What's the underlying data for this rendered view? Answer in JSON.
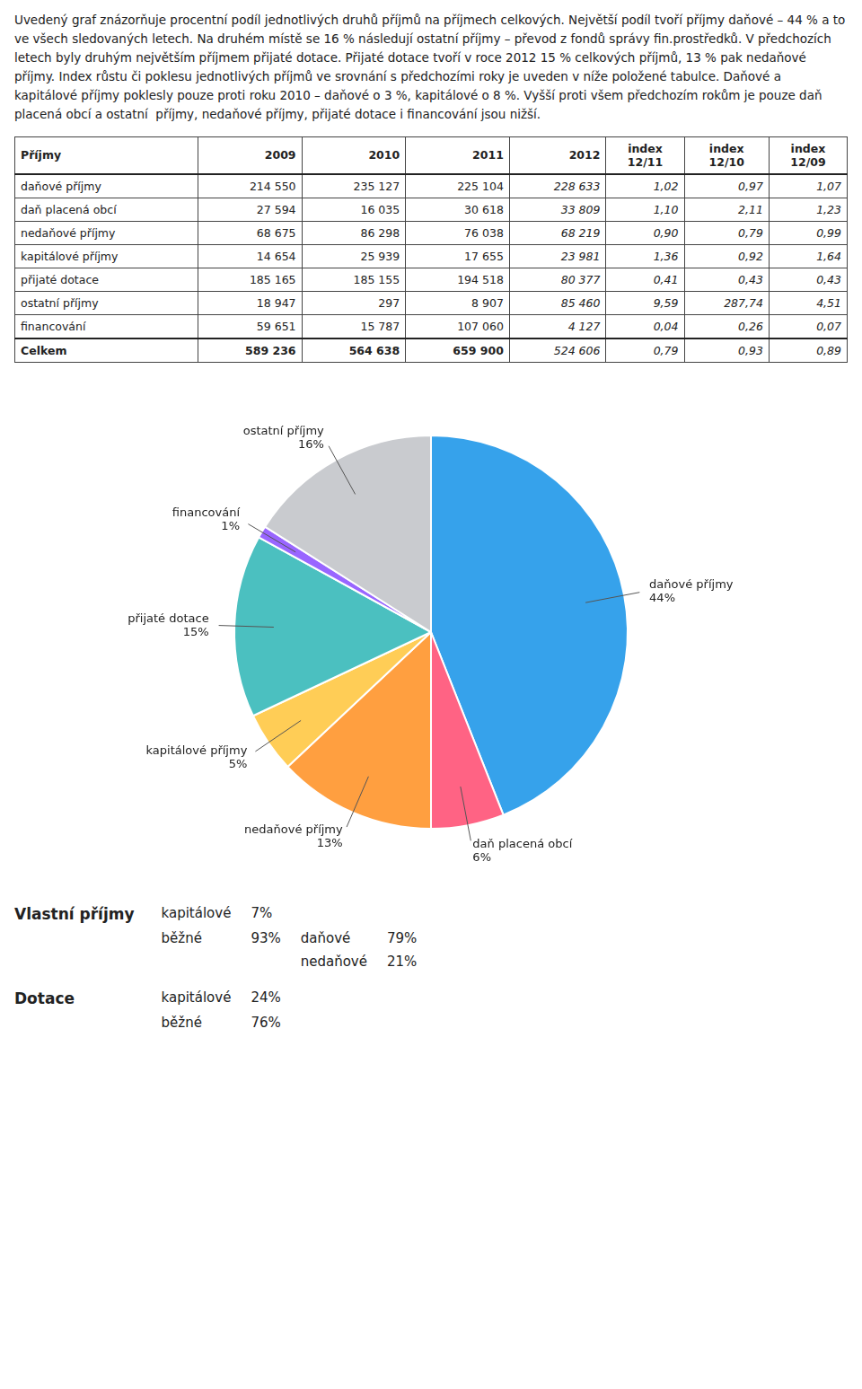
{
  "chart_data": {
    "type": "pie",
    "categories": [
      "daňové příjmy",
      "daň placená obcí",
      "nedaňové příjmy",
      "kapitálové příjmy",
      "přijaté dotace",
      "financování",
      "ostatní příjmy"
    ],
    "values": [
      44,
      6,
      13,
      5,
      15,
      1,
      16
    ],
    "value_labels": [
      "44%",
      "6%",
      "13%",
      "5%",
      "15%",
      "1%",
      "16%"
    ],
    "data_labels": true,
    "annotations": {
      "paragraph": "Uvedený graf znázorňuje procentní podíl jednotlivých druhů příjmů na příjmech celkových. Největší podíl tvoří příjmy daňové – 44 % a to ve všech sledovaných letech. Na druhém místě se 16 % následují ostatní příjmy – převod z fondů správy fin.prostředků. V předchozích letech byly druhým největším příjmem přijaté dotace. Přijaté dotace tvoří v roce 2012 15 % celkových příjmů, 13 % pak nedaňové příjmy. Index růstu či poklesu jednotlivých příjmů ve srovnání s předchozími roky je uveden v níže položené tabulce. Daňové a kapitálové příjmy poklesly pouze proti roku 2010 – daňové o 3 %, kapitálové o 8 %. Vyšší proti všem předchozím rokům je pouze daň placená obcí a ostatní  příjmy, nedaňové příjmy, přijaté dotace i financování jsou nižší.",
      "table": {
        "columns": [
          "Příjmy",
          "2009",
          "2010",
          "2011",
          "2012",
          "index\n12/11",
          "index\n12/10",
          "index\n12/09"
        ],
        "rows": [
          [
            "daňové příjmy",
            "214 550",
            "235 127",
            "225 104",
            "228 633",
            "1,02",
            "0,97",
            "1,07"
          ],
          [
            "daň placená obcí",
            "27 594",
            "16 035",
            "30 618",
            "33 809",
            "1,10",
            "2,11",
            "1,23"
          ],
          [
            "nedaňové příjmy",
            "68 675",
            "86 298",
            "76 038",
            "68 219",
            "0,90",
            "0,79",
            "0,99"
          ],
          [
            "kapitálové příjmy",
            "14 654",
            "25 939",
            "17 655",
            "23 981",
            "1,36",
            "0,92",
            "1,64"
          ],
          [
            "přijaté dotace",
            "185 165",
            "185 155",
            "194 518",
            "80 377",
            "0,41",
            "0,43",
            "0,43"
          ],
          [
            "ostatní příjmy",
            "18 947",
            "297",
            "8 907",
            "85 460",
            "9,59",
            "287,74",
            "4,51"
          ],
          [
            "financování",
            "59 651",
            "15 787",
            "107 060",
            "4 127",
            "0,04",
            "0,26",
            "0,07"
          ],
          [
            "Celkem",
            "589 236",
            "564 638",
            "659 900",
            "524 606",
            "0,79",
            "0,93",
            "0,89"
          ]
        ]
      },
      "sections": [
        {
          "label": "Vlastní příjmy",
          "items": [
            {
              "label": "kapitálové",
              "value": "7%"
            },
            {
              "label": "běžné",
              "value": "93%",
              "items": [
                {
                  "label": "daňové",
                  "value": "79%"
                },
                {
                  "label": "nedaňové",
                  "value": "21%"
                }
              ]
            }
          ]
        },
        {
          "label": "Dotace",
          "items": [
            {
              "label": "kapitálové",
              "value": "24%"
            },
            {
              "label": "běžné",
              "value": "76%"
            }
          ]
        }
      ]
    }
  }
}
